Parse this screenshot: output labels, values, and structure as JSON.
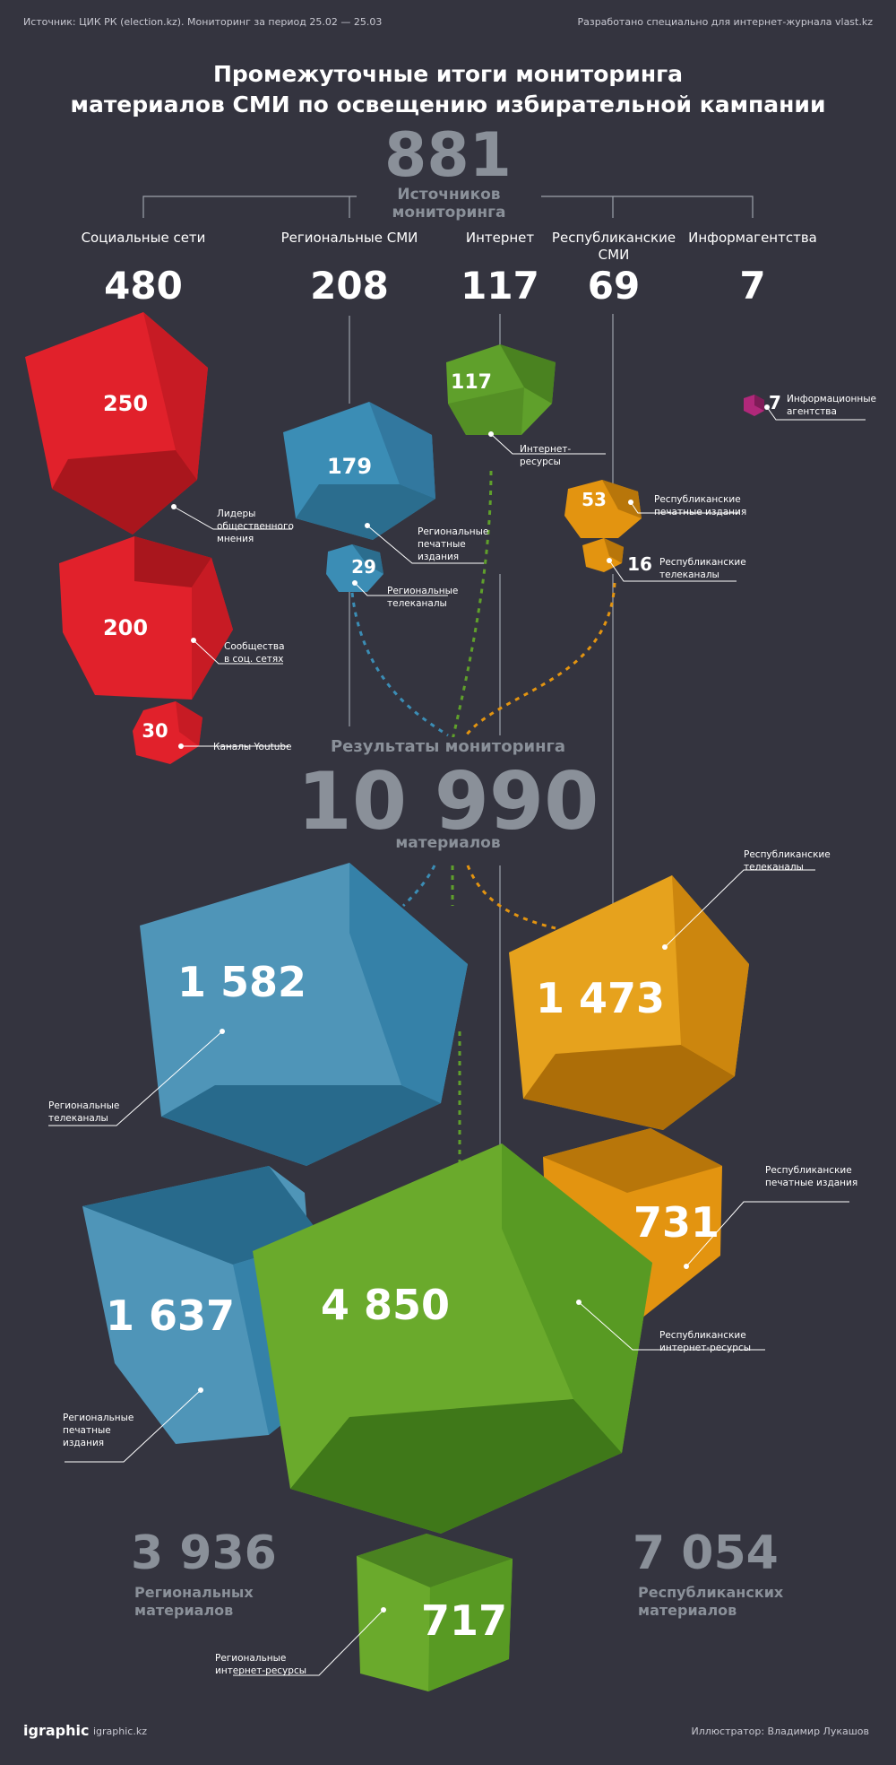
{
  "header": {
    "source": "Источник: ЦИК РК (election.kz). Мониторинг за период 25.02 — 25.03",
    "developed_for": "Разработано специально для интернет-журнала vlast.kz"
  },
  "title": {
    "line1": "Промежуточные итоги мониторинга",
    "line2": "материалов СМИ по освещению избирательной кампании"
  },
  "sources": {
    "total": "881",
    "total_label": "Источников мониторинга",
    "categories": [
      {
        "label": "Социальные сети",
        "value": "480"
      },
      {
        "label": "Региональные СМИ",
        "value": "208"
      },
      {
        "label": "Интернет",
        "value": "117"
      },
      {
        "label": "Республиканские СМИ",
        "value": "69"
      },
      {
        "label": "Информагентства",
        "value": "7"
      }
    ],
    "cubes": [
      {
        "value": "250",
        "label": "Лидеры общественного мнения",
        "color": "#e1212b"
      },
      {
        "value": "200",
        "label": "Сообщества в соц. сетях",
        "color": "#e1212b"
      },
      {
        "value": "30",
        "label": "Каналы Youtube",
        "color": "#e1212b"
      },
      {
        "value": "179",
        "label": "Региональные печатные издания",
        "color": "#3b8db5"
      },
      {
        "value": "29",
        "label": "Региональные телеканалы",
        "color": "#3b8db5"
      },
      {
        "value": "117",
        "label": "Интернет-ресурсы",
        "color": "#5fa02b"
      },
      {
        "value": "53",
        "label": "Республиканские печатные издания",
        "color": "#e39410"
      },
      {
        "value": "16",
        "label": "Республиканские телеканалы",
        "color": "#e39410"
      },
      {
        "value": "7",
        "label": "Информационные агентства",
        "color": "#b0287a"
      }
    ]
  },
  "results": {
    "heading": "Результаты мониторинга",
    "total": "10 990",
    "total_label": "материалов",
    "cubes": [
      {
        "value": "1 582",
        "label": "Региональные телеканалы",
        "color": "#3b8db5"
      },
      {
        "value": "1 473",
        "label": "Республиканские телеканалы",
        "color": "#e39410"
      },
      {
        "value": "731",
        "label": "Республиканские печатные издания",
        "color": "#e39410"
      },
      {
        "value": "1 637",
        "label": "Региональные печатные издания",
        "color": "#3b8db5"
      },
      {
        "value": "4 850",
        "label": "Республиканские интернет-ресурсы",
        "color": "#5fa02b"
      },
      {
        "value": "717",
        "label": "Региональные интернет-ресурсы",
        "color": "#5fa02b"
      }
    ],
    "regional_total": "3 936",
    "regional_label_line1": "Региональных",
    "regional_label_line2": "материалов",
    "republican_total": "7 054",
    "republican_label_line1": "Республиканских",
    "republican_label_line2": "материалов"
  },
  "footer": {
    "logo": "igraphic",
    "site": "igraphic.kz",
    "illustrator": "Иллюстратор: Владимир Лукашов"
  }
}
